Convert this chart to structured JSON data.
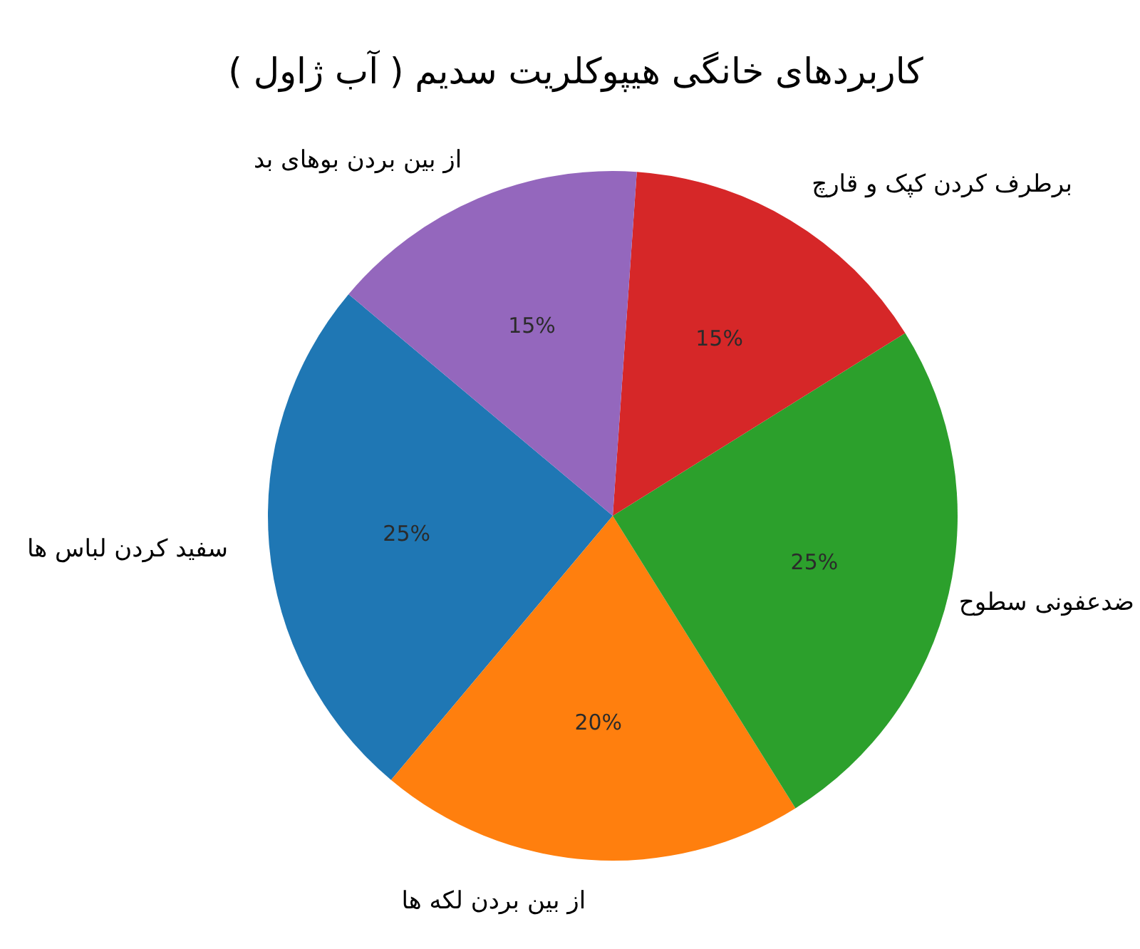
{
  "chart_data": {
    "type": "pie",
    "title": "کاربردهای خانگی هیپوکلریت سدیم ( آب ژاول )",
    "categories": [
      "سفید کردن لباس ها",
      "از بین بردن لکه ها",
      "ضدعفونی سطوح",
      "برطرف کردن کپک و قارچ",
      "از بین بردن بوهای بد"
    ],
    "values": [
      25,
      20,
      25,
      15,
      15
    ],
    "colors": [
      "#1f77b4",
      "#ff7f0e",
      "#2ca02c",
      "#d62728",
      "#9467bd"
    ],
    "value_labels": [
      "25%",
      "20%",
      "25%",
      "15%",
      "15%"
    ]
  }
}
